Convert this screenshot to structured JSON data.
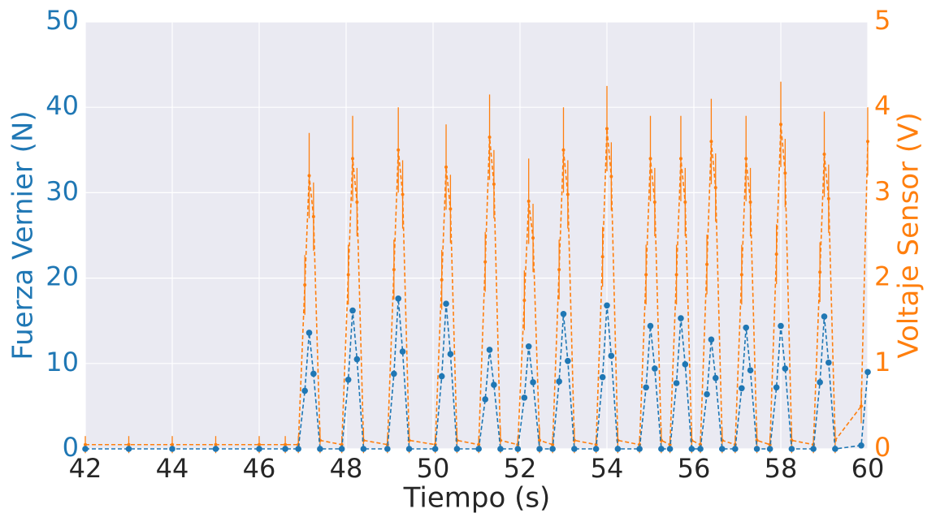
{
  "chart_data": {
    "type": "line",
    "xlabel": "Tiempo (s)",
    "ylabel": "Fuerza Vernier (N)",
    "y2label": "Voltaje Sensor (V)",
    "xlim": [
      42,
      60
    ],
    "xticks": [
      42,
      44,
      46,
      48,
      50,
      52,
      54,
      56,
      58,
      60
    ],
    "ylim": [
      0,
      50
    ],
    "yticks": [
      0,
      10,
      20,
      30,
      40,
      50
    ],
    "y2lim": [
      0,
      5
    ],
    "y2ticks": [
      0,
      1,
      2,
      3,
      4,
      5
    ],
    "grid": true,
    "background": "#eaeaf2",
    "x": [
      42,
      43,
      44,
      45,
      46,
      46.6,
      46.9,
      47.05,
      47.15,
      47.25,
      47.4,
      47.9,
      48.05,
      48.15,
      48.25,
      48.4,
      48.95,
      49.1,
      49.2,
      49.3,
      49.45,
      50.05,
      50.2,
      50.3,
      50.4,
      50.55,
      51.05,
      51.2,
      51.3,
      51.4,
      51.55,
      51.95,
      52.1,
      52.2,
      52.3,
      52.45,
      52.75,
      52.9,
      53.0,
      53.1,
      53.25,
      53.75,
      53.9,
      54.0,
      54.1,
      54.25,
      54.75,
      54.9,
      55.0,
      55.1,
      55.25,
      55.45,
      55.6,
      55.7,
      55.8,
      55.95,
      56.15,
      56.3,
      56.4,
      56.5,
      56.65,
      56.95,
      57.1,
      57.2,
      57.3,
      57.45,
      57.75,
      57.9,
      58.0,
      58.1,
      58.25,
      58.75,
      58.9,
      59.0,
      59.1,
      59.25,
      59.85,
      60
    ],
    "series": [
      {
        "color": "#1f77b4",
        "axis": "y",
        "values": [
          0,
          0,
          0,
          0,
          0,
          0,
          0,
          6.8,
          13.6,
          8.8,
          0,
          0,
          8.1,
          16.2,
          10.5,
          0,
          0,
          8.8,
          17.6,
          11.4,
          0,
          0,
          8.5,
          17.0,
          11.1,
          0,
          0,
          5.8,
          11.6,
          7.5,
          0,
          0,
          6.0,
          12.0,
          7.8,
          0,
          0,
          7.9,
          15.8,
          10.3,
          0,
          0,
          8.4,
          16.8,
          10.9,
          0,
          0,
          7.2,
          14.4,
          9.4,
          0,
          0,
          7.7,
          15.3,
          9.9,
          0,
          0,
          6.4,
          12.8,
          8.3,
          0,
          0,
          7.1,
          14.2,
          9.2,
          0,
          0,
          7.2,
          14.4,
          9.4,
          0,
          0,
          7.8,
          15.5,
          10.1,
          0,
          0.4,
          9.0
        ]
      },
      {
        "color": "#ff7f0e",
        "axis": "y2",
        "values": [
          0.05,
          0.05,
          0.05,
          0.05,
          0.05,
          0.05,
          0.05,
          1.92,
          3.2,
          2.72,
          0.1,
          0.05,
          2.04,
          3.4,
          2.89,
          0.1,
          0.05,
          2.1,
          3.5,
          2.98,
          0.1,
          0.05,
          1.98,
          3.3,
          2.81,
          0.1,
          0.05,
          2.19,
          3.65,
          3.1,
          0.1,
          0.05,
          1.74,
          2.9,
          2.47,
          0.1,
          0.05,
          2.1,
          3.5,
          2.98,
          0.1,
          0.05,
          2.25,
          3.75,
          3.19,
          0.1,
          0.05,
          2.04,
          3.4,
          2.89,
          0.1,
          0.05,
          2.04,
          3.4,
          2.89,
          0.1,
          0.05,
          2.16,
          3.6,
          3.06,
          0.1,
          0.05,
          2.04,
          3.4,
          2.89,
          0.1,
          0.05,
          2.28,
          3.8,
          3.23,
          0.1,
          0.05,
          2.07,
          3.45,
          2.93,
          0.1,
          0.5,
          3.6
        ],
        "errors": [
          0.1,
          0.1,
          0.1,
          0.1,
          0.1,
          0.1,
          0.1,
          0.35,
          0.5,
          0.4,
          0.15,
          0.1,
          0.35,
          0.5,
          0.4,
          0.15,
          0.1,
          0.35,
          0.5,
          0.4,
          0.15,
          0.1,
          0.35,
          0.5,
          0.4,
          0.15,
          0.1,
          0.35,
          0.5,
          0.4,
          0.15,
          0.1,
          0.35,
          0.5,
          0.4,
          0.15,
          0.1,
          0.35,
          0.5,
          0.4,
          0.15,
          0.1,
          0.35,
          0.5,
          0.4,
          0.15,
          0.1,
          0.35,
          0.5,
          0.4,
          0.15,
          0.1,
          0.35,
          0.5,
          0.4,
          0.15,
          0.1,
          0.35,
          0.5,
          0.4,
          0.15,
          0.1,
          0.35,
          0.5,
          0.4,
          0.15,
          0.1,
          0.35,
          0.5,
          0.4,
          0.15,
          0.1,
          0.35,
          0.5,
          0.4,
          0.15,
          0.2,
          0.4
        ]
      }
    ]
  }
}
